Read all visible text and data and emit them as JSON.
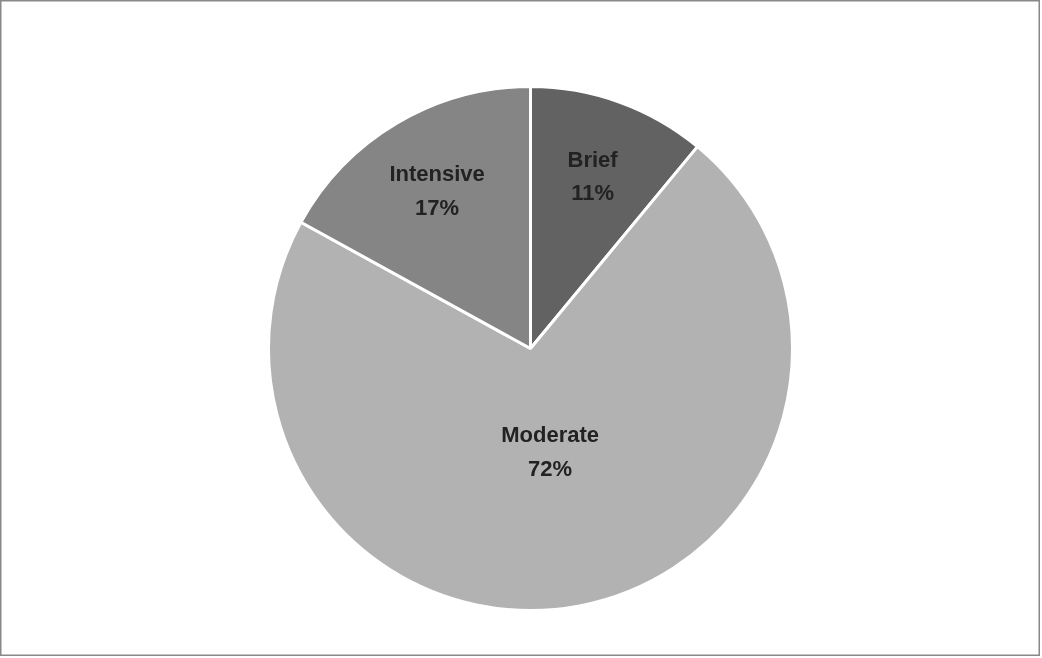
{
  "chart_data": {
    "type": "pie",
    "categories": [
      "Brief",
      "Moderate",
      "Intensive"
    ],
    "values": [
      11,
      72,
      17
    ],
    "colors": [
      "#626262",
      "#b2b2b2",
      "#858585"
    ],
    "value_labels": [
      "11%",
      "72%",
      "17%"
    ]
  }
}
